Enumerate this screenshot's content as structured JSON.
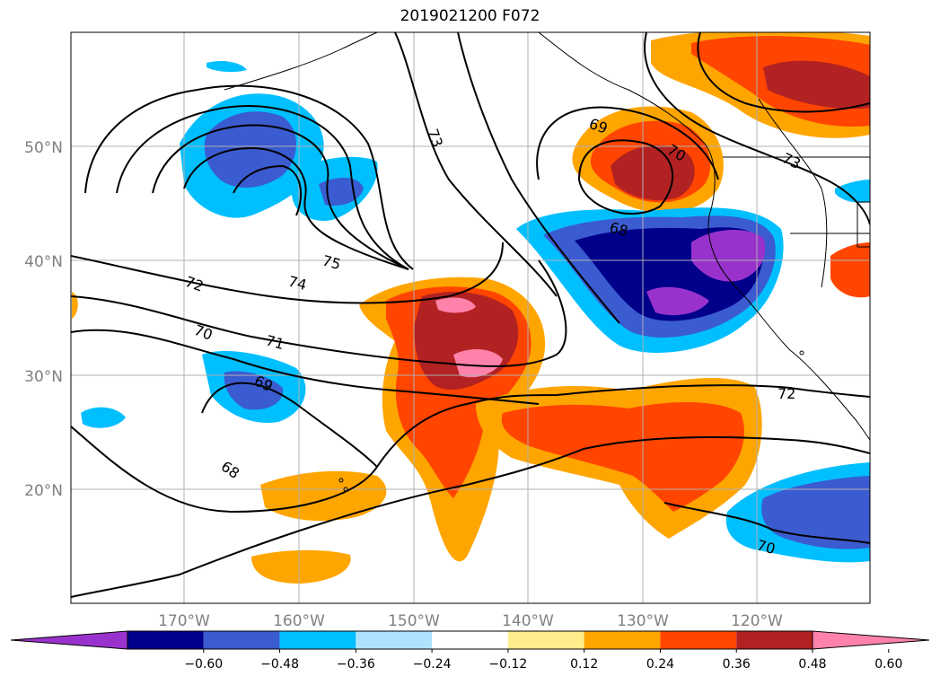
{
  "title": "2019021200 F072",
  "map": {
    "lat_labels": [
      "50°N",
      "40°N",
      "30°N",
      "20°N"
    ],
    "lon_labels": [
      "170°W",
      "160°W",
      "150°W",
      "140°W",
      "130°W",
      "120°W"
    ],
    "contour_labels": [
      "73",
      "75",
      "74",
      "72",
      "70",
      "71",
      "69",
      "68",
      "69",
      "70",
      "68",
      "73",
      "72",
      "70"
    ]
  },
  "colorbar": {
    "colors": [
      "#9932cc",
      "#00008b",
      "#3b5bd0",
      "#00bfff",
      "#b0e2ff",
      "#ffffff",
      "#ffec8b",
      "#ffa500",
      "#ff4500",
      "#b22222",
      "#ff82ab"
    ],
    "tick_labels": [
      "−0.60",
      "−0.48",
      "−0.36",
      "−0.24",
      "−0.12",
      "0.12",
      "0.24",
      "0.36",
      "0.48",
      "0.60"
    ]
  }
}
